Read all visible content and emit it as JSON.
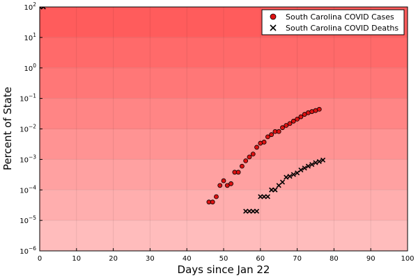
{
  "chart_data": {
    "type": "scatter",
    "title": "",
    "xlabel": "Days since Jan 22",
    "ylabel": "Percent of State",
    "xlim": [
      0,
      100
    ],
    "ylim": [
      1e-06,
      100
    ],
    "yscale": "log",
    "x_ticks": [
      0,
      10,
      20,
      30,
      40,
      50,
      60,
      70,
      80,
      90,
      100
    ],
    "x_tick_labels": [
      "0",
      "10",
      "20",
      "30",
      "40",
      "50",
      "60",
      "70",
      "80",
      "90",
      "100"
    ],
    "y_ticks": [
      1e-06,
      1e-05,
      0.0001,
      0.001,
      0.01,
      0.1,
      1,
      10,
      100
    ],
    "y_tick_labels": [
      {
        "base": "10",
        "exp": "−6"
      },
      {
        "base": "10",
        "exp": "−5"
      },
      {
        "base": "10",
        "exp": "−4"
      },
      {
        "base": "10",
        "exp": "−3"
      },
      {
        "base": "10",
        "exp": "−2"
      },
      {
        "base": "10",
        "exp": "−1"
      },
      {
        "base": "10",
        "exp": "0"
      },
      {
        "base": "10",
        "exp": "1"
      },
      {
        "base": "10",
        "exp": "2"
      }
    ],
    "grid": true,
    "background": "red gradient bands by decade, darker at top",
    "legend_position": "top-right",
    "series": [
      {
        "name": "South Carolina COVID Cases",
        "marker": "circle",
        "color": "#dd1111",
        "points": [
          [
            46,
            4e-05
          ],
          [
            47,
            4e-05
          ],
          [
            48,
            6e-05
          ],
          [
            49,
            0.00014
          ],
          [
            50,
            0.0002
          ],
          [
            51,
            0.00014
          ],
          [
            52,
            0.00016
          ],
          [
            53,
            0.00038
          ],
          [
            54,
            0.00038
          ],
          [
            55,
            0.0006
          ],
          [
            56,
            0.0009
          ],
          [
            57,
            0.0012
          ],
          [
            58,
            0.0015
          ],
          [
            59,
            0.0025
          ],
          [
            60,
            0.0034
          ],
          [
            61,
            0.0037
          ],
          [
            62,
            0.0055
          ],
          [
            63,
            0.0065
          ],
          [
            64,
            0.0082
          ],
          [
            65,
            0.0082
          ],
          [
            66,
            0.011
          ],
          [
            67,
            0.013
          ],
          [
            68,
            0.015
          ],
          [
            69,
            0.018
          ],
          [
            70,
            0.021
          ],
          [
            71,
            0.025
          ],
          [
            72,
            0.03
          ],
          [
            73,
            0.034
          ],
          [
            74,
            0.037
          ],
          [
            75,
            0.04
          ],
          [
            76,
            0.044
          ]
        ]
      },
      {
        "name": "South Carolina COVID Deaths",
        "marker": "x",
        "color": "#000000",
        "points": [
          [
            0,
            100
          ],
          [
            1,
            100
          ],
          [
            56,
            2e-05
          ],
          [
            57,
            2e-05
          ],
          [
            58,
            2e-05
          ],
          [
            59,
            2e-05
          ],
          [
            60,
            6e-05
          ],
          [
            61,
            6e-05
          ],
          [
            62,
            6e-05
          ],
          [
            63,
            0.0001
          ],
          [
            64,
            0.0001
          ],
          [
            65,
            0.00014
          ],
          [
            66,
            0.00018
          ],
          [
            67,
            0.00026
          ],
          [
            68,
            0.00028
          ],
          [
            69,
            0.00032
          ],
          [
            70,
            0.00036
          ],
          [
            71,
            0.00045
          ],
          [
            72,
            0.00052
          ],
          [
            73,
            0.0006
          ],
          [
            74,
            0.00068
          ],
          [
            75,
            0.00078
          ],
          [
            76,
            0.00085
          ],
          [
            77,
            0.00095
          ]
        ]
      }
    ]
  }
}
